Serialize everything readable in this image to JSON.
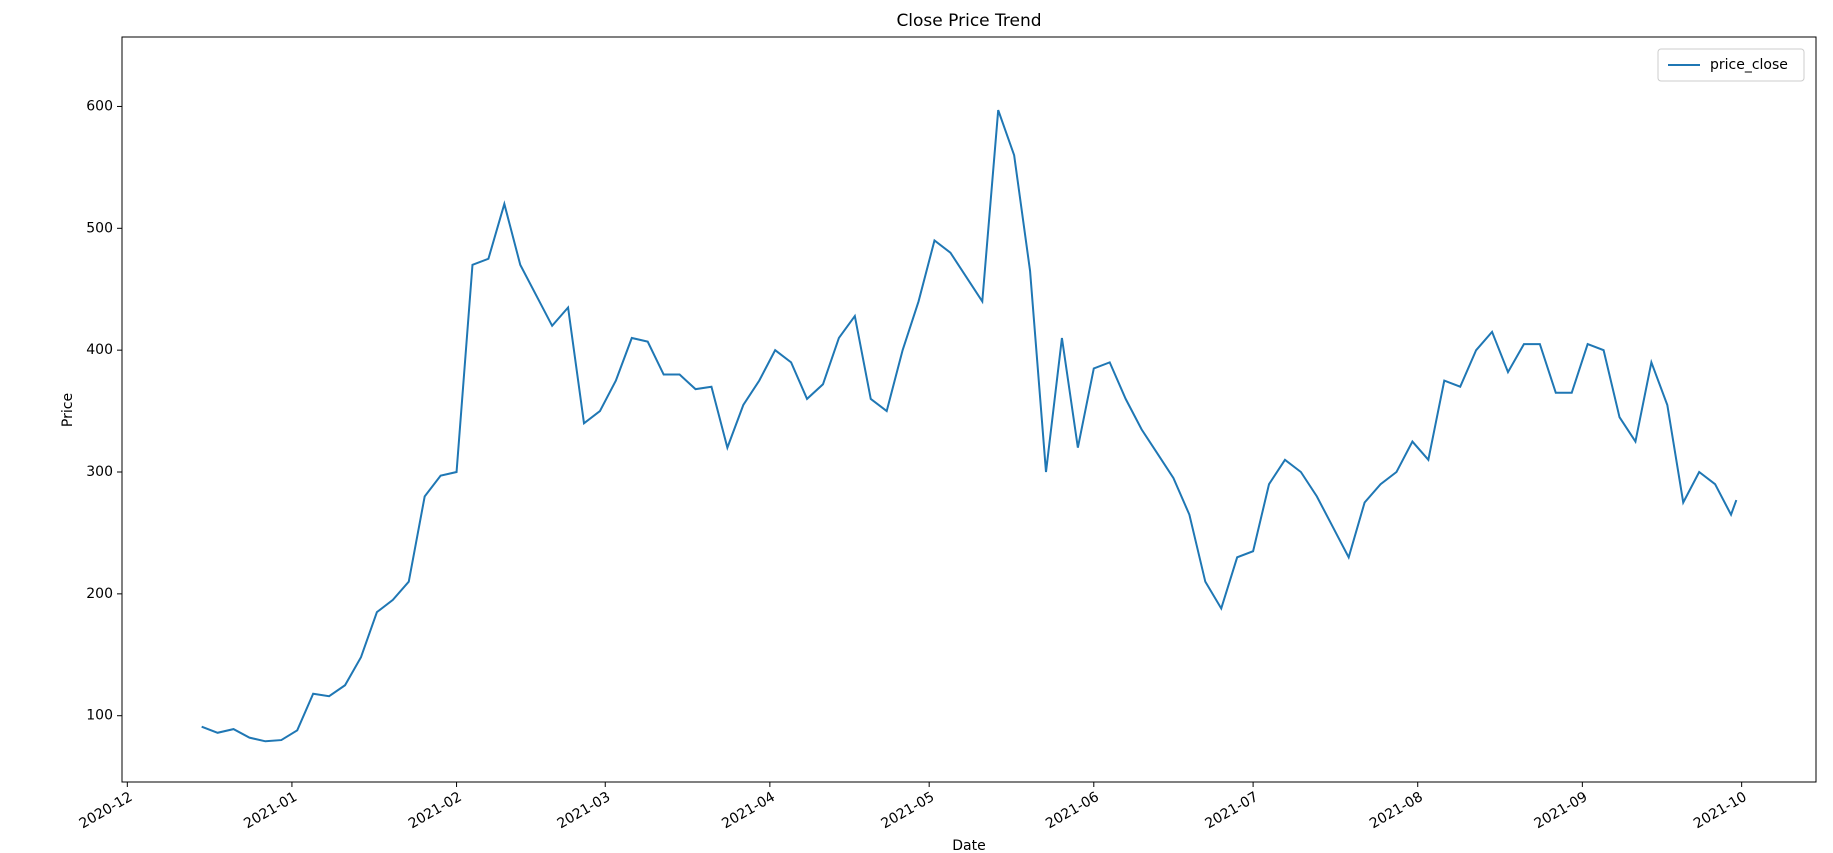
{
  "chart_data": {
    "type": "line",
    "title": "Close Price Trend",
    "x_label": "Date",
    "y_label": "Price",
    "x": [
      "2020-12-15",
      "2020-12-18",
      "2020-12-21",
      "2020-12-24",
      "2020-12-27",
      "2020-12-30",
      "2021-01-02",
      "2021-01-05",
      "2021-01-08",
      "2021-01-11",
      "2021-01-14",
      "2021-01-17",
      "2021-01-20",
      "2021-01-23",
      "2021-01-26",
      "2021-01-29",
      "2021-02-01",
      "2021-02-04",
      "2021-02-07",
      "2021-02-10",
      "2021-02-13",
      "2021-02-16",
      "2021-02-19",
      "2021-02-22",
      "2021-02-25",
      "2021-02-28",
      "2021-03-03",
      "2021-03-06",
      "2021-03-09",
      "2021-03-12",
      "2021-03-15",
      "2021-03-18",
      "2021-03-21",
      "2021-03-24",
      "2021-03-27",
      "2021-03-30",
      "2021-04-02",
      "2021-04-05",
      "2021-04-08",
      "2021-04-11",
      "2021-04-14",
      "2021-04-17",
      "2021-04-20",
      "2021-04-23",
      "2021-04-26",
      "2021-04-29",
      "2021-05-02",
      "2021-05-05",
      "2021-05-08",
      "2021-05-11",
      "2021-05-14",
      "2021-05-17",
      "2021-05-20",
      "2021-05-23",
      "2021-05-26",
      "2021-05-29",
      "2021-06-01",
      "2021-06-04",
      "2021-06-07",
      "2021-06-10",
      "2021-06-13",
      "2021-06-16",
      "2021-06-19",
      "2021-06-22",
      "2021-06-25",
      "2021-06-28",
      "2021-07-01",
      "2021-07-04",
      "2021-07-07",
      "2021-07-10",
      "2021-07-13",
      "2021-07-16",
      "2021-07-19",
      "2021-07-22",
      "2021-07-25",
      "2021-07-28",
      "2021-07-31",
      "2021-08-03",
      "2021-08-06",
      "2021-08-09",
      "2021-08-12",
      "2021-08-15",
      "2021-08-18",
      "2021-08-21",
      "2021-08-24",
      "2021-08-27",
      "2021-08-30",
      "2021-09-02",
      "2021-09-05",
      "2021-09-08",
      "2021-09-11",
      "2021-09-14",
      "2021-09-17",
      "2021-09-20",
      "2021-09-23",
      "2021-09-26",
      "2021-09-29",
      "2021-09-30"
    ],
    "series": [
      {
        "name": "price_close",
        "color": "#1f77b4",
        "values": [
          91,
          86,
          89,
          82,
          79,
          80,
          88,
          118,
          116,
          125,
          148,
          185,
          195,
          210,
          280,
          297,
          300,
          470,
          475,
          520,
          470,
          445,
          420,
          435,
          340,
          350,
          375,
          410,
          407,
          380,
          380,
          368,
          370,
          320,
          355,
          375,
          400,
          390,
          360,
          372,
          410,
          428,
          360,
          350,
          400,
          440,
          490,
          480,
          460,
          440,
          597,
          560,
          465,
          300,
          410,
          320,
          385,
          390,
          360,
          335,
          315,
          295,
          265,
          210,
          188,
          230,
          235,
          290,
          310,
          300,
          280,
          255,
          230,
          275,
          290,
          300,
          325,
          310,
          375,
          370,
          400,
          415,
          382,
          405,
          405,
          365,
          365,
          405,
          400,
          345,
          325,
          390,
          355,
          275,
          300,
          290,
          265,
          277
        ]
      }
    ],
    "xlim": [
      "2020-11-30",
      "2021-10-15"
    ],
    "xticks": [
      "2020-12",
      "2021-01",
      "2021-02",
      "2021-03",
      "2021-04",
      "2021-05",
      "2021-06",
      "2021-07",
      "2021-08",
      "2021-09",
      "2021-10"
    ],
    "ylim": [
      45.6,
      657
    ],
    "yticks": [
      100,
      200,
      300,
      400,
      500,
      600
    ],
    "legend": "upper right"
  }
}
